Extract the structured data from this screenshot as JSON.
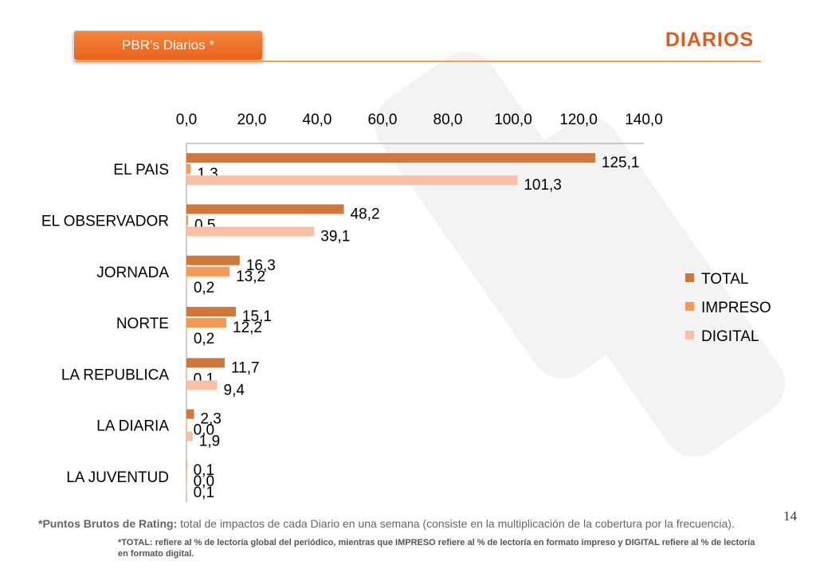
{
  "header": {
    "tag_label": "PBR’s Diarios  *",
    "title": "DIARIOS"
  },
  "page_number": "14",
  "footnote": {
    "bold_part": "*Puntos Brutos de Rating:",
    "text_part": " total de impactos de cada Diario en una semana (consiste en la multiplicación de la cobertura por la frecuencia).",
    "note": "*TOTAL: refiere al % de lectoría global del periódico, mientras que IMPRESO refiere al % de lectoría en formato impreso y DIGITAL refiere al % de lectoría en formato digital."
  },
  "colors": {
    "total": "#d0783a",
    "impreso": "#f59a55",
    "digital": "#f9c0a6",
    "accent": "#e35a1a"
  },
  "chart_data": {
    "type": "bar",
    "orientation": "horizontal",
    "categories": [
      "EL PAIS",
      "EL OBSERVADOR",
      "JORNADA",
      "NORTE",
      "LA REPUBLICA",
      "LA DIARIA",
      "LA JUVENTUD"
    ],
    "series": [
      {
        "name": "TOTAL",
        "values": [
          125.1,
          48.2,
          16.3,
          15.1,
          11.7,
          2.3,
          0.1
        ],
        "labels": [
          "125,1",
          "48,2",
          "16,3",
          "15,1",
          "11,7",
          "2,3",
          "0,1"
        ]
      },
      {
        "name": "IMPRESO",
        "values": [
          1.3,
          0.5,
          13.2,
          12.2,
          0.1,
          0.0,
          0.0
        ],
        "labels": [
          "1,3",
          "0,5",
          "13,2",
          "12,2",
          "0,1",
          "0,0",
          "0,0"
        ]
      },
      {
        "name": "DIGITAL",
        "values": [
          101.3,
          39.1,
          0.2,
          0.2,
          9.4,
          1.9,
          0.1
        ],
        "labels": [
          "101,3",
          "39,1",
          "0,2",
          "0,2",
          "9,4",
          "1,9",
          "0,1"
        ]
      }
    ],
    "xlim": [
      0,
      140
    ],
    "ticks": [
      "0,0",
      "20,0",
      "40,0",
      "60,0",
      "80,0",
      "100,0",
      "120,0",
      "140,0"
    ],
    "tick_values": [
      0,
      20,
      40,
      60,
      80,
      100,
      120,
      140
    ],
    "legend_position": "right",
    "axis_position": "top",
    "grid": false
  }
}
